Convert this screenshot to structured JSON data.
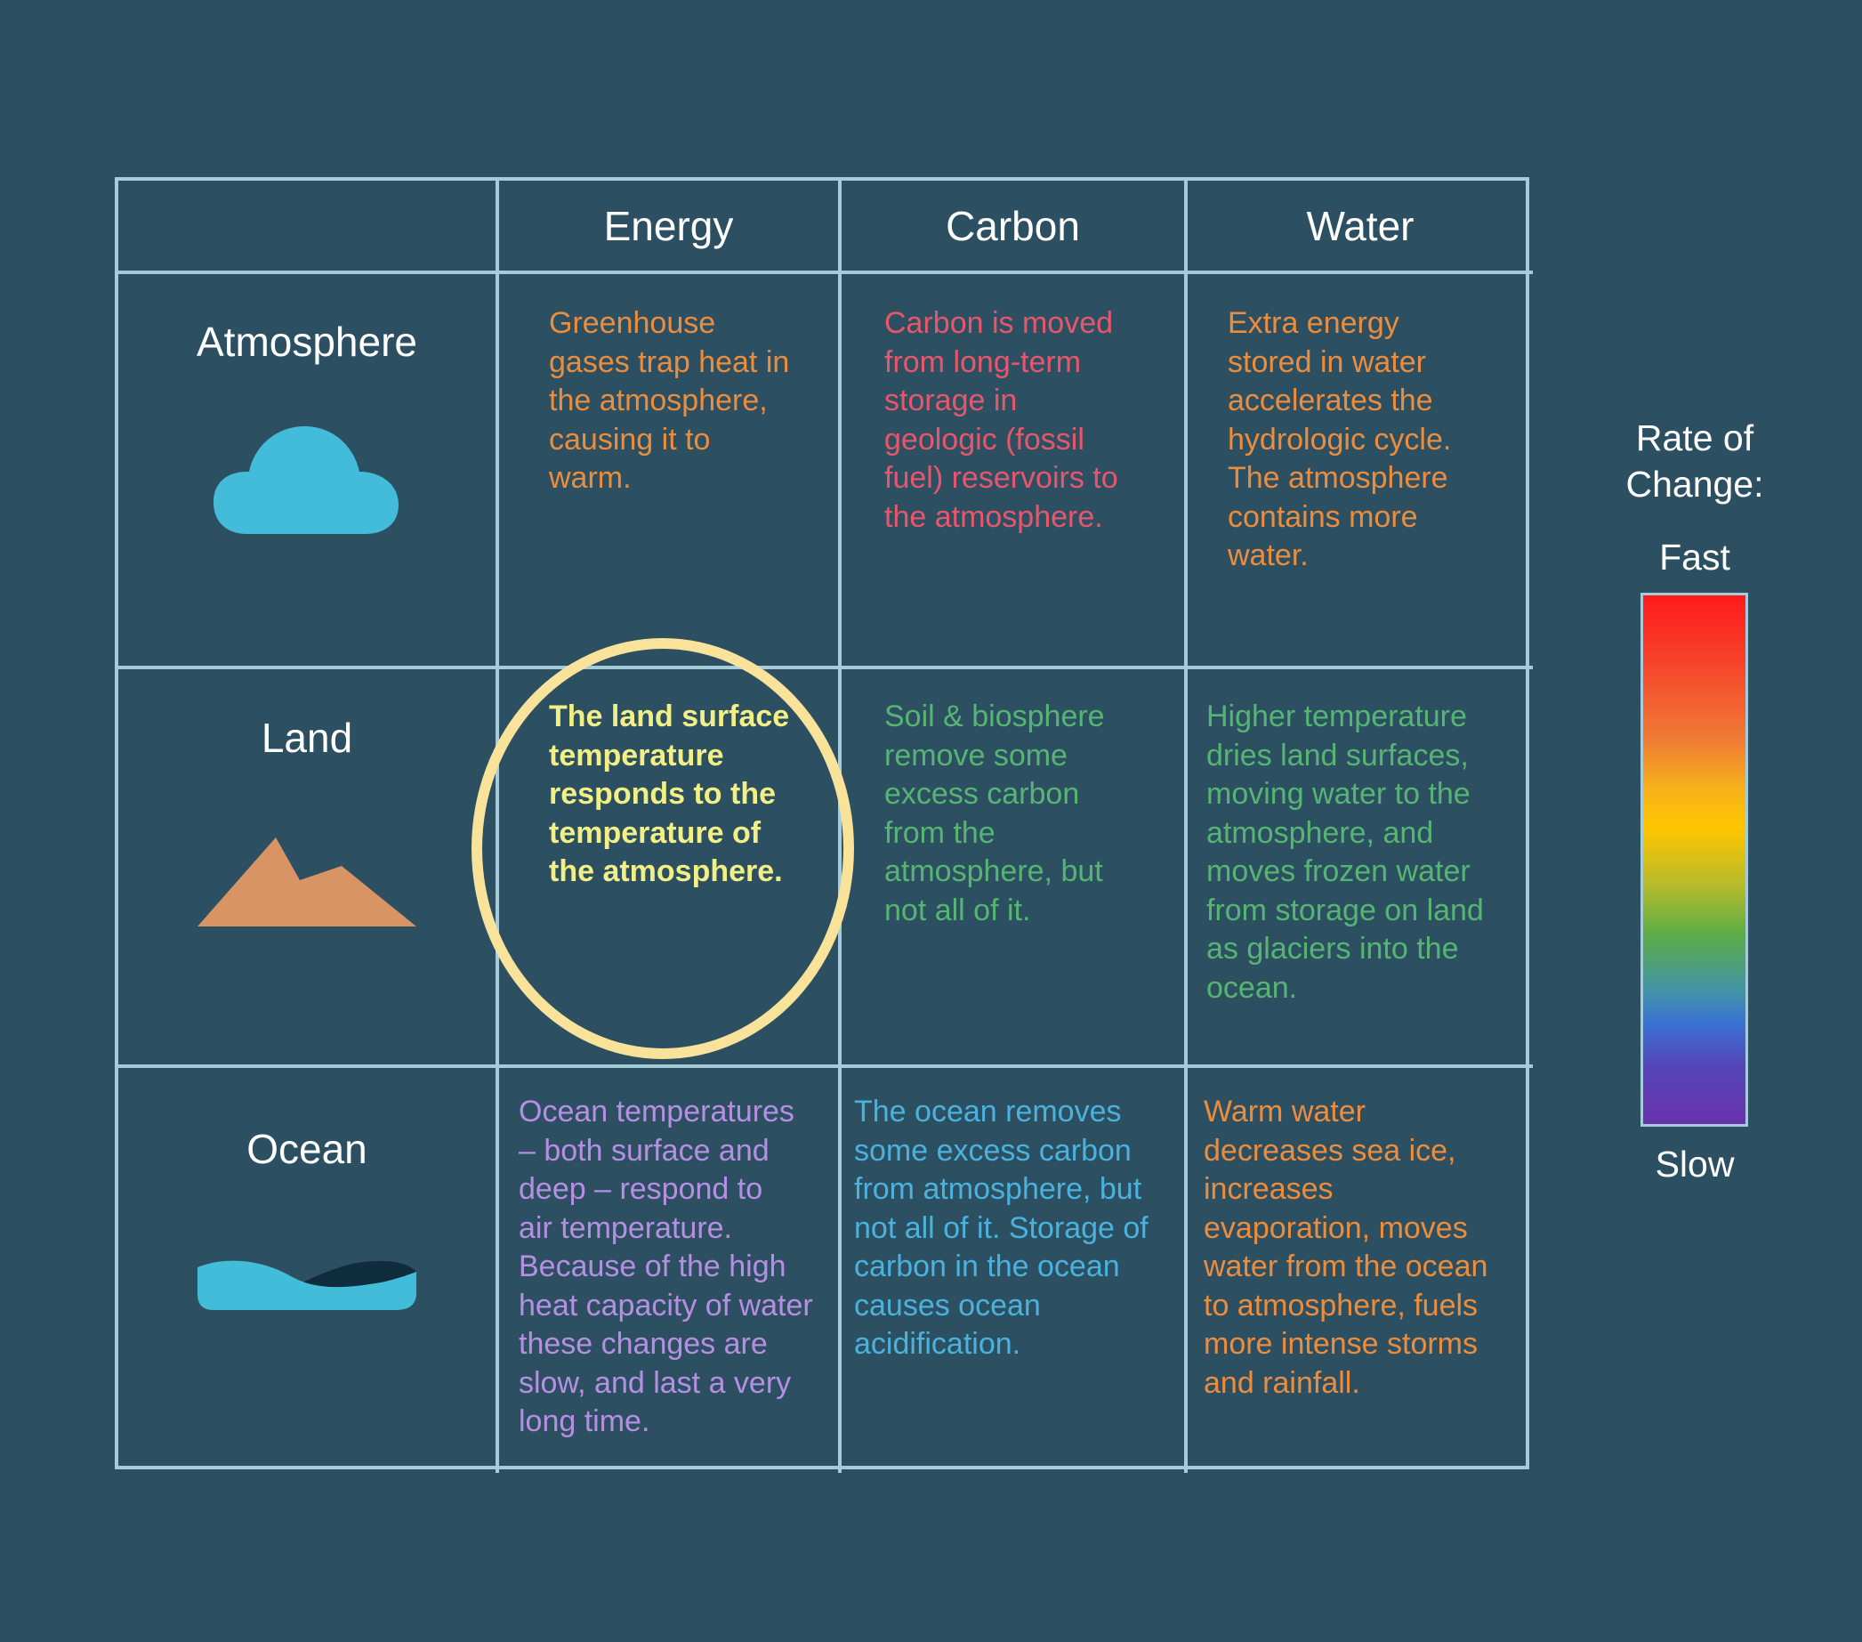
{
  "headers": {
    "energy": "Energy",
    "carbon": "Carbon",
    "water": "Water"
  },
  "rows": {
    "atmosphere": {
      "label": "Atmosphere",
      "icon": "cloud-icon",
      "energy": "Greenhouse\ngases trap heat in\nthe atmosphere,\ncausing it to\nwarm.",
      "carbon": "Carbon is moved\nfrom long-term\nstorage in\ngeologic (fossil\nfuel) reservoirs to\nthe atmosphere.",
      "water": "Extra energy\nstored in water\naccelerates the\nhydrologic cycle.\nThe atmosphere\ncontains more\nwater."
    },
    "land": {
      "label": "Land",
      "icon": "mountain-icon",
      "energy": "The land surface\ntemperature\nresponds to the\ntemperature of\nthe atmosphere.",
      "carbon": "Soil & biosphere\nremove some\nexcess carbon\nfrom the\natmosphere, but\nnot all of it.",
      "water": "Higher temperature\ndries land surfaces,\nmoving water to the\natmosphere, and\nmoves frozen water\nfrom storage on land\nas glaciers into the\nocean."
    },
    "ocean": {
      "label": "Ocean",
      "icon": "wave-icon",
      "energy": "Ocean temperatures\n– both surface and\ndeep – respond to\nair temperature.\nBecause of the high\nheat capacity of water\nthese changes are\nslow, and last a very\nlong time.",
      "carbon": "The ocean removes\nsome excess carbon\nfrom atmosphere, but\nnot all of it. Storage of\ncarbon in the ocean\ncauses ocean\nacidification.",
      "water": "Warm water\ndecreases sea ice,\nincreases\nevaporation, moves\nwater from the ocean\nto atmosphere, fuels\nmore intense storms\nand rainfall."
    }
  },
  "legend": {
    "title": "Rate of\nChange:",
    "fast": "Fast",
    "slow": "Slow",
    "gradient_colors": [
      "#ff1a1a",
      "#ef7a35",
      "#ffc500",
      "#5cad45",
      "#3a72d4",
      "#6a32ad"
    ]
  },
  "colors": {
    "background": "#2c5062",
    "grid_lines": "#a6cbdb",
    "highlight_ring": "#f9e29a",
    "atmosphere_energy_text": "#ec8d3e",
    "atmosphere_carbon_text": "#e8566b",
    "atmosphere_water_text": "#ec8d3e",
    "land_energy_text": "#f2ef86",
    "land_carbon_text": "#56b572",
    "land_water_text": "#56b572",
    "ocean_energy_text": "#b68fe3",
    "ocean_carbon_text": "#4ab2dc",
    "ocean_water_text": "#ec8d3e"
  }
}
